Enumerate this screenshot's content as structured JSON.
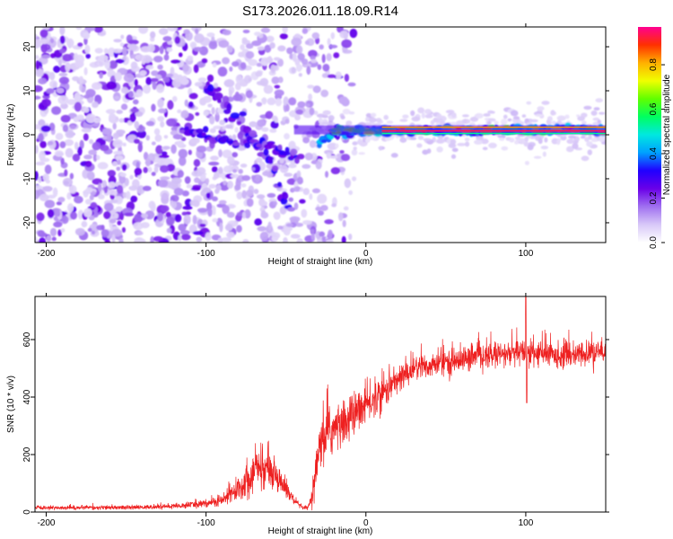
{
  "title": "S173.2026.011.18.09.R14",
  "chart_data": [
    {
      "type": "heatmap",
      "name": "spectrogram",
      "xlabel": "Height of straight line (km)",
      "ylabel": "Frequency (Hz)",
      "xlim": [
        -207,
        150
      ],
      "ylim": [
        -24.5,
        24.5
      ],
      "xticks": [
        "-200",
        "-100",
        "0",
        "100"
      ],
      "xtick_values": [
        -200,
        -100,
        0,
        100
      ],
      "yticks": [
        "20",
        "10",
        "0",
        "-10",
        "-20"
      ],
      "ytick_values": [
        20,
        10,
        0,
        -10,
        -20
      ],
      "colorbar": {
        "label": "Normalized spectral amplitude",
        "range": [
          0.0,
          0.97
        ],
        "ticks": [
          "0.0",
          "0.2",
          "0.4",
          "0.6",
          "0.8"
        ],
        "tick_values": [
          0.0,
          0.2,
          0.4,
          0.6,
          0.8
        ],
        "colormap": [
          "#ffffff",
          "#d8c8f8",
          "#a070f0",
          "#6a00e8",
          "#2000ff",
          "#00a0ff",
          "#00e8e0",
          "#00ff60",
          "#60ff00",
          "#f0ff00",
          "#ffb000",
          "#ff3000",
          "#ff0090"
        ]
      },
      "features": [
        {
          "description": "descending trace",
          "points": [
            [
              -100,
              11
            ],
            [
              -90,
              7
            ],
            [
              -80,
              3
            ],
            [
              -70,
              -1
            ],
            [
              -60,
              -6
            ],
            [
              -55,
              -11
            ],
            [
              -50,
              -15
            ],
            [
              -46,
              -17
            ]
          ]
        },
        {
          "description": "lower trace",
          "points": [
            [
              -115,
              1.5
            ],
            [
              -100,
              0
            ],
            [
              -90,
              -1.2
            ],
            [
              -80,
              -1.8
            ],
            [
              -70,
              -1.5
            ],
            [
              -60,
              -2.5
            ],
            [
              -50,
              -4
            ],
            [
              -40,
              -6
            ]
          ]
        },
        {
          "description": "steady carrier",
          "points": [
            [
              -30,
              -2
            ],
            [
              -20,
              0.5
            ],
            [
              0,
              0.8
            ],
            [
              50,
              1.0
            ],
            [
              100,
              1.2
            ],
            [
              150,
              1.2
            ]
          ]
        }
      ]
    },
    {
      "type": "line",
      "name": "snr",
      "xlabel": "Height of straight line (km)",
      "ylabel": "SNR (10 * v/v)",
      "xlim": [
        -207,
        150
      ],
      "ylim": [
        0,
        750
      ],
      "xticks": [
        "-200",
        "-100",
        "0",
        "100"
      ],
      "xtick_values": [
        -200,
        -100,
        0,
        100
      ],
      "yticks": [
        "0",
        "200",
        "400",
        "600"
      ],
      "ytick_values": [
        0,
        200,
        400,
        600
      ],
      "series": [
        {
          "name": "SNR",
          "color": "#ee2020",
          "x": [
            -207,
            -180,
            -150,
            -120,
            -100,
            -90,
            -80,
            -75,
            -70,
            -65,
            -60,
            -55,
            -50,
            -45,
            -40,
            -36,
            -33,
            -30,
            -28,
            -25,
            -20,
            -15,
            -10,
            -5,
            0,
            5,
            10,
            15,
            20,
            25,
            30,
            40,
            50,
            60,
            70,
            80,
            90,
            100,
            110,
            120,
            130,
            140,
            150
          ],
          "y": [
            15,
            15,
            15,
            20,
            30,
            40,
            80,
            110,
            140,
            150,
            150,
            120,
            80,
            40,
            15,
            15,
            60,
            190,
            230,
            270,
            290,
            300,
            330,
            350,
            370,
            390,
            410,
            440,
            460,
            480,
            500,
            510,
            520,
            530,
            540,
            545,
            550,
            555,
            550,
            545,
            545,
            550,
            555
          ],
          "noise": [
            8,
            8,
            8,
            10,
            15,
            25,
            45,
            70,
            80,
            80,
            70,
            55,
            40,
            20,
            8,
            10,
            60,
            90,
            100,
            100,
            100,
            90,
            90,
            80,
            80,
            70,
            70,
            60,
            60,
            55,
            55,
            55,
            50,
            50,
            50,
            50,
            50,
            55,
            50,
            50,
            50,
            50,
            50
          ]
        }
      ]
    }
  ]
}
